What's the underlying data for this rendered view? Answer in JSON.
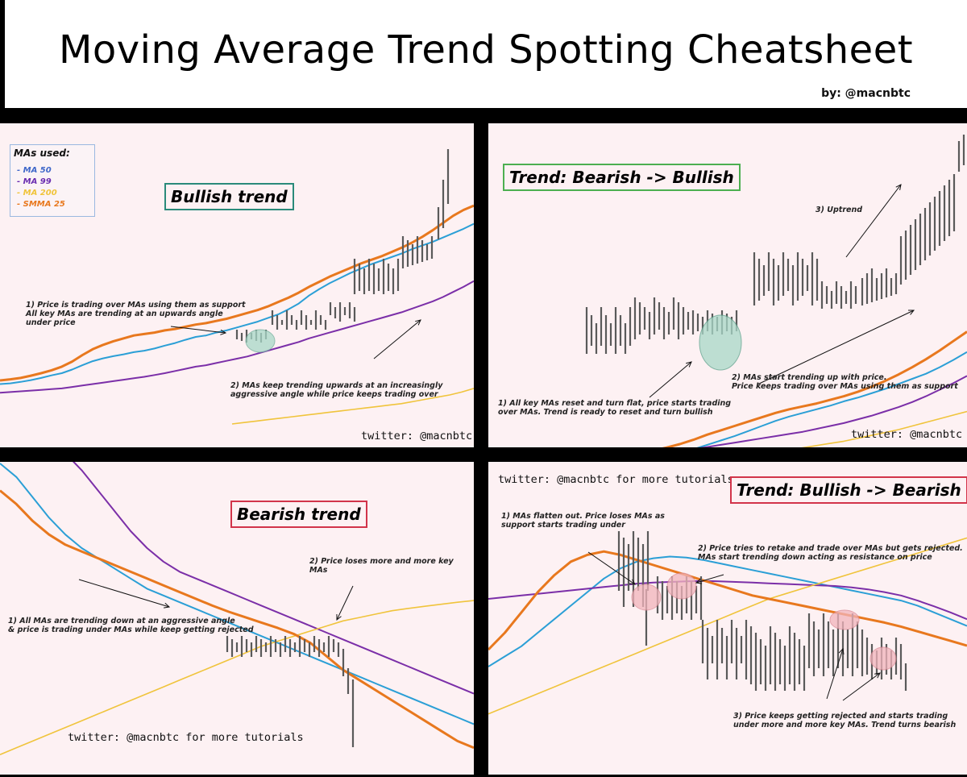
{
  "header": {
    "title": "Moving Average Trend Spotting Cheatsheet",
    "byline": "by: @macnbtc"
  },
  "colors": {
    "ma50": "#2b9fd6",
    "ma99": "#7b2fa8",
    "ma200": "#f0c43c",
    "smma25": "#e8781e",
    "candle": "#5a5a5a",
    "bullish_box": "#2a8a7a",
    "transition_box": "#4caf50",
    "bearish_box": "#d2344a",
    "panel_bg": "#fdf1f3"
  },
  "legend": {
    "title": "MAs used:",
    "items": [
      {
        "label": "- MA 50",
        "color": "#3f67c9"
      },
      {
        "label": "- MA 99",
        "color": "#6a2db0"
      },
      {
        "label": "- MA 200",
        "color": "#f0c43c"
      },
      {
        "label": "- SMMA 25",
        "color": "#e8781e"
      }
    ]
  },
  "chart_data": [
    {
      "type": "line",
      "title": "Bullish trend",
      "series": [
        {
          "name": "MA 50",
          "values": [
            170,
            172,
            176,
            181,
            187,
            194,
            200,
            210,
            222,
            233,
            241,
            247,
            252,
            258,
            262,
            268,
            276,
            283,
            292,
            300,
            304,
            312,
            318,
            326,
            334,
            342,
            352,
            362,
            376,
            392,
            414,
            432,
            448,
            462,
            476,
            488,
            500,
            510,
            520,
            530,
            542,
            552,
            562,
            574,
            586,
            598,
            612
          ]
        },
        {
          "name": "MA 99",
          "values": [
            146,
            148,
            150,
            152,
            154,
            156,
            158,
            162,
            166,
            170,
            174,
            178,
            182,
            186,
            190,
            195,
            200,
            206,
            212,
            218,
            222,
            228,
            234,
            240,
            246,
            254,
            262,
            270,
            278,
            286,
            296,
            304,
            312,
            320,
            328,
            336,
            344,
            352,
            360,
            368,
            378,
            388,
            398,
            410,
            424,
            438,
            454
          ]
        },
        {
          "name": "MA 200",
          "values": [
            0,
            0,
            0,
            0,
            0,
            0,
            0,
            0,
            0,
            0,
            0,
            0,
            0,
            0,
            0,
            0,
            0,
            0,
            0,
            0,
            0,
            0,
            0,
            0,
            0,
            0,
            60,
            64,
            68,
            72,
            76,
            80,
            84,
            88,
            92,
            96,
            100,
            104,
            108,
            112,
            116,
            122,
            128,
            134,
            140,
            148,
            158
          ]
        },
        {
          "name": "SMMA 25",
          "values": [
            180,
            183,
            187,
            193,
            200,
            208,
            218,
            232,
            250,
            266,
            278,
            288,
            296,
            304,
            308,
            312,
            318,
            322,
            328,
            334,
            338,
            344,
            350,
            358,
            366,
            374,
            384,
            396,
            408,
            422,
            438,
            452,
            466,
            478,
            490,
            502,
            512,
            522,
            534,
            546,
            560,
            576,
            594,
            614,
            634,
            650,
            662
          ]
        }
      ]
    },
    {
      "type": "line",
      "title": "Trend: Bearish -> Bullish",
      "series": [
        {
          "name": "MA 50",
          "values": [
            118,
            112,
            104,
            98,
            94,
            92,
            94,
            98,
            104,
            112,
            118,
            122,
            126,
            130,
            136,
            146,
            158,
            170,
            182,
            196,
            210,
            224,
            236,
            246,
            256,
            266,
            278,
            288,
            300,
            312,
            326,
            340,
            354,
            372,
            392,
            414
          ]
        },
        {
          "name": "MA 99",
          "values": [
            134,
            130,
            126,
            122,
            118,
            116,
            116,
            118,
            122,
            126,
            130,
            134,
            138,
            140,
            142,
            146,
            152,
            158,
            164,
            170,
            176,
            182,
            188,
            194,
            202,
            210,
            218,
            228,
            238,
            250,
            262,
            276,
            292,
            310,
            328,
            348
          ]
        },
        {
          "name": "MA 200",
          "values": [
            58,
            60,
            62,
            64,
            66,
            68,
            70,
            72,
            74,
            78,
            82,
            86,
            90,
            94,
            98,
            102,
            108,
            114,
            120,
            126,
            132,
            138,
            144,
            150,
            156,
            162,
            168,
            176,
            184,
            192,
            200,
            210,
            220,
            230,
            240,
            250
          ]
        },
        {
          "name": "SMMA 25",
          "values": [
            108,
            104,
            98,
            94,
            92,
            94,
            100,
            108,
            118,
            126,
            132,
            136,
            142,
            150,
            160,
            172,
            186,
            198,
            210,
            222,
            234,
            246,
            256,
            264,
            272,
            282,
            292,
            304,
            318,
            334,
            352,
            372,
            394,
            418,
            444,
            470
          ]
        }
      ]
    },
    {
      "type": "line",
      "title": "Bearish trend",
      "series": [
        {
          "name": "MA 50",
          "values": [
            900,
            860,
            800,
            740,
            690,
            650,
            620,
            590,
            560,
            530,
            510,
            490,
            470,
            450,
            430,
            410,
            390,
            370,
            350,
            330,
            310,
            290,
            270,
            250,
            230,
            210,
            190,
            170,
            150,
            130
          ]
        },
        {
          "name": "MA 99",
          "values": [
            960,
            980,
            990,
            970,
            930,
            880,
            820,
            760,
            700,
            650,
            610,
            580,
            560,
            540,
            520,
            500,
            480,
            460,
            440,
            420,
            400,
            380,
            360,
            340,
            320,
            300,
            280,
            260,
            240,
            220
          ]
        },
        {
          "name": "MA 200",
          "values": [
            40,
            60,
            80,
            100,
            120,
            140,
            160,
            180,
            200,
            220,
            240,
            260,
            280,
            300,
            320,
            340,
            360,
            375,
            390,
            405,
            420,
            435,
            445,
            455,
            465,
            472,
            478,
            484,
            490,
            495
          ]
        },
        {
          "name": "SMMA 25",
          "values": [
            820,
            780,
            730,
            690,
            660,
            640,
            620,
            600,
            580,
            560,
            540,
            520,
            500,
            480,
            462,
            446,
            430,
            414,
            396,
            370,
            330,
            290,
            260,
            230,
            200,
            170,
            140,
            110,
            80,
            60
          ]
        }
      ]
    },
    {
      "type": "line",
      "title": "Trend: Bullish -> Bearish",
      "series": [
        {
          "name": "MA 50",
          "values": [
            300,
            330,
            360,
            400,
            440,
            480,
            520,
            560,
            590,
            610,
            620,
            625,
            622,
            615,
            605,
            595,
            585,
            575,
            565,
            555,
            545,
            535,
            525,
            515,
            505,
            495,
            480,
            460,
            440,
            420
          ]
        },
        {
          "name": "MA 99",
          "values": [
            500,
            505,
            510,
            515,
            520,
            525,
            530,
            535,
            540,
            545,
            548,
            550,
            552,
            553,
            552,
            550,
            548,
            546,
            544,
            542,
            540,
            538,
            534,
            528,
            520,
            510,
            495,
            478,
            460,
            440
          ]
        },
        {
          "name": "MA 200",
          "values": [
            160,
            180,
            200,
            220,
            240,
            260,
            280,
            300,
            320,
            340,
            360,
            380,
            400,
            420,
            440,
            460,
            480,
            500,
            515,
            530,
            545,
            560,
            575,
            590,
            605,
            620,
            635,
            650,
            665,
            680
          ]
        },
        {
          "name": "SMMA 25",
          "values": [
            350,
            400,
            460,
            520,
            570,
            610,
            630,
            640,
            630,
            615,
            600,
            585,
            570,
            555,
            540,
            525,
            510,
            500,
            490,
            480,
            470,
            460,
            450,
            440,
            430,
            418,
            404,
            390,
            376,
            362
          ]
        }
      ]
    }
  ],
  "panels": {
    "bullish": {
      "label": "Bullish trend",
      "note1": "1) Price is trading over MAs using them as support\nAll key MAs are trending at an upwards angle\nunder price",
      "note2": "2) MAs keep trending upwards at an increasingly\naggressive angle while price keeps trading over",
      "twitter": "twitter: @macnbtc"
    },
    "bear_to_bull": {
      "label": "Trend: Bearish -> Bullish",
      "note1": "1) All key MAs reset and turn flat, price starts trading\nover MAs. Trend is ready to reset and turn bullish",
      "note2": "2) MAs start trending up with price.\nPrice keeps trading over MAs using them as support",
      "note3": "3) Uptrend",
      "twitter": "twitter: @macnbtc"
    },
    "bearish": {
      "label": "Bearish trend",
      "note1": "1) All MAs are trending down at an aggressive angle\n& price is trading under MAs while keep getting rejected",
      "note2": "2) Price loses more and more key MAs",
      "twitter": "twitter: @macnbtc for more tutorials"
    },
    "bull_to_bear": {
      "label": "Trend: Bullish -> Bearish",
      "note1": "1) MAs flatten out. Price loses MAs as\nsupport starts trading under",
      "note2": "2) Price tries to retake and trade over MAs but gets rejected.\nMAs start trending down acting as resistance on price",
      "note3": "3) Price keeps getting rejected and starts trading\nunder more and more key MAs. Trend turns bearish",
      "twitter": "twitter: @macnbtc for more tutorials"
    }
  }
}
